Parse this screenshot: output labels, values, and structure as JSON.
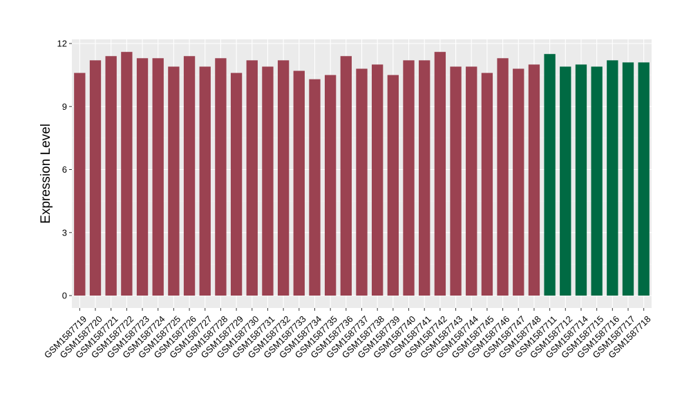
{
  "chart_data": {
    "type": "bar",
    "ylabel": "Expression Level",
    "xlabel": "",
    "ylim": [
      0,
      12.4
    ],
    "yticks": [
      0,
      3,
      6,
      9,
      12
    ],
    "grid": true,
    "categories": [
      "GSM1587719",
      "GSM1587720",
      "GSM1587721",
      "GSM1587722",
      "GSM1587723",
      "GSM1587724",
      "GSM1587725",
      "GSM1587726",
      "GSM1587727",
      "GSM1587728",
      "GSM1587729",
      "GSM1587730",
      "GSM1587731",
      "GSM1587732",
      "GSM1587733",
      "GSM1587734",
      "GSM1587735",
      "GSM1587736",
      "GSM1587737",
      "GSM1587738",
      "GSM1587739",
      "GSM1587740",
      "GSM1587741",
      "GSM1587742",
      "GSM1587743",
      "GSM1587744",
      "GSM1587745",
      "GSM1587746",
      "GSM1587747",
      "GSM1587748",
      "GSM1587711",
      "GSM1587712",
      "GSM1587714",
      "GSM1587715",
      "GSM1587716",
      "GSM1587717",
      "GSM1587718"
    ],
    "values": [
      10.6,
      11.2,
      11.4,
      11.6,
      11.3,
      11.3,
      10.9,
      11.4,
      10.9,
      11.3,
      10.6,
      11.2,
      10.9,
      11.2,
      10.7,
      10.3,
      10.5,
      11.4,
      10.8,
      11.0,
      10.5,
      11.2,
      11.2,
      11.6,
      10.9,
      10.9,
      10.6,
      11.3,
      10.8,
      11.0,
      11.5,
      10.9,
      11.0,
      10.9,
      11.2,
      11.1,
      11.1
    ],
    "bar_colors": [
      "#9b4251",
      "#9b4251",
      "#9b4251",
      "#9b4251",
      "#9b4251",
      "#9b4251",
      "#9b4251",
      "#9b4251",
      "#9b4251",
      "#9b4251",
      "#9b4251",
      "#9b4251",
      "#9b4251",
      "#9b4251",
      "#9b4251",
      "#9b4251",
      "#9b4251",
      "#9b4251",
      "#9b4251",
      "#9b4251",
      "#9b4251",
      "#9b4251",
      "#9b4251",
      "#9b4251",
      "#9b4251",
      "#9b4251",
      "#9b4251",
      "#9b4251",
      "#9b4251",
      "#9b4251",
      "#006a43",
      "#006a43",
      "#006a43",
      "#006a43",
      "#006a43",
      "#006a43",
      "#006a43"
    ],
    "colors": {
      "panel_background": "#ebebeb",
      "grid_major": "#ffffff",
      "grid_minor": "#f5f5f5",
      "axis_text": "#000000",
      "tick": "#333333"
    }
  }
}
